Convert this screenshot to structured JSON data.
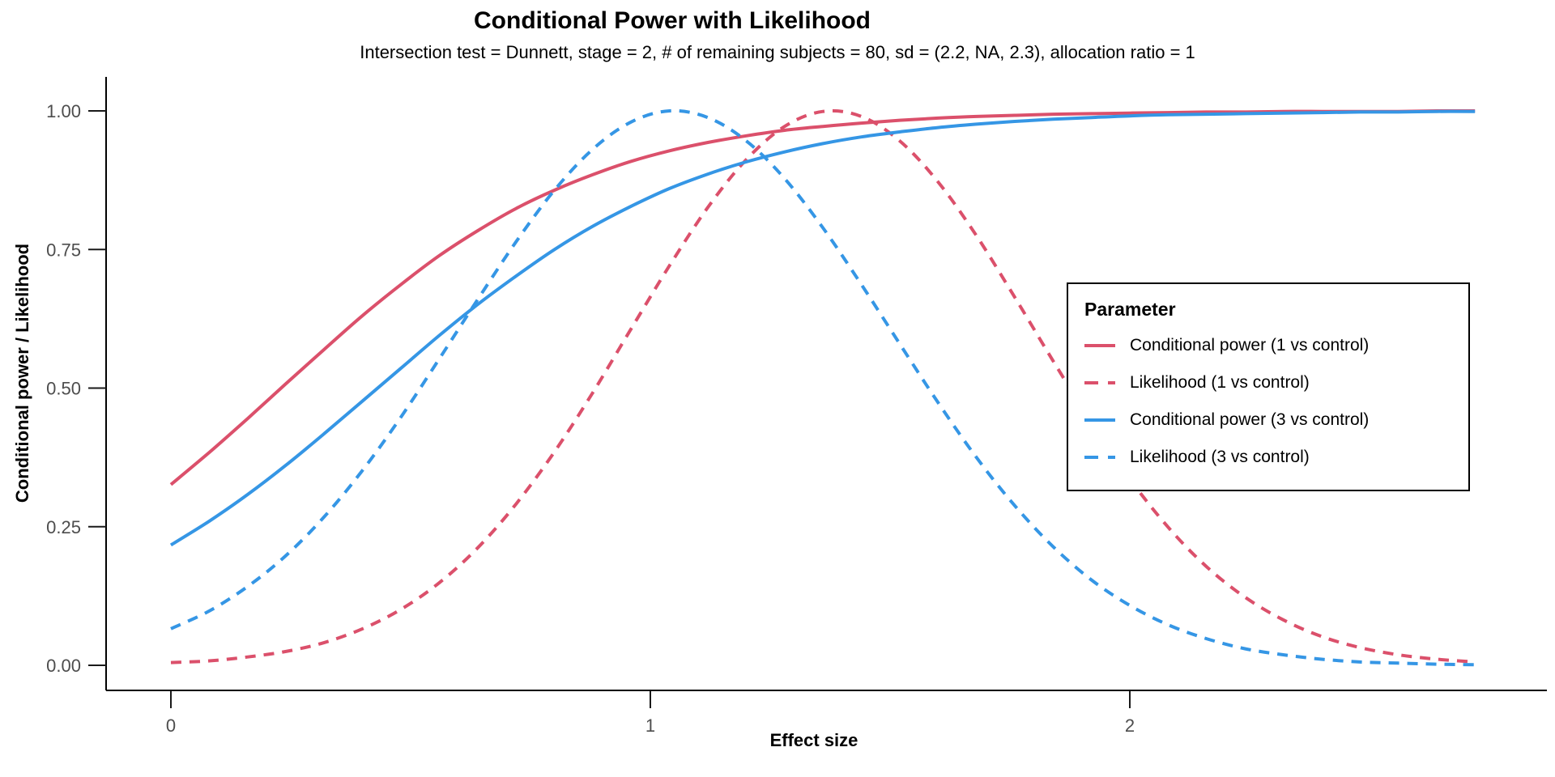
{
  "chart_data": {
    "type": "line",
    "title": "Conditional Power with Likelihood",
    "subtitle": "Intersection test = Dunnett, stage = 2, # of remaining subjects = 80, sd = (2.2, NA, 2.3), allocation ratio = 1",
    "xlabel": "Effect size",
    "ylabel": "Conditional power / Likelihood",
    "xlim": [
      -0.14,
      2.87
    ],
    "ylim": [
      -0.05,
      1.05
    ],
    "grid": false,
    "legend_title": "Parameter",
    "legend_position": "inside-right",
    "x_ticks": {
      "values": [
        0,
        1,
        2
      ],
      "labels": [
        "0",
        "1",
        "2"
      ]
    },
    "y_ticks": {
      "values": [
        0,
        0.25,
        0.5,
        0.75,
        1
      ],
      "labels": [
        "0.00",
        "0.25",
        "0.50",
        "0.75",
        "1.00"
      ]
    },
    "style": {
      "axis_line_color": "#000000",
      "tick_color": "#1a1a1a",
      "tick_label_color": "#4d4d4d",
      "background": "#ffffff"
    },
    "x": [
      0,
      0.08,
      0.16,
      0.24,
      0.32,
      0.4,
      0.48,
      0.56,
      0.64,
      0.72,
      0.8,
      0.88,
      0.96,
      1.04,
      1.12,
      1.2,
      1.28,
      1.36,
      1.44,
      1.52,
      1.6,
      1.68,
      1.76,
      1.84,
      1.92,
      2.0,
      2.08,
      2.16,
      2.24,
      2.32,
      2.4,
      2.48,
      2.56,
      2.64,
      2.72
    ],
    "series": [
      {
        "name": "Conditional power (1 vs control)",
        "color": "#DB506B",
        "line_style": "solid",
        "values": [
          0.326,
          0.384,
          0.445,
          0.508,
          0.57,
          0.631,
          0.687,
          0.739,
          0.784,
          0.824,
          0.857,
          0.885,
          0.909,
          0.928,
          0.943,
          0.955,
          0.965,
          0.972,
          0.978,
          0.983,
          0.987,
          0.99,
          0.992,
          0.994,
          0.995,
          0.996,
          0.997,
          0.998,
          0.998,
          0.999,
          0.999,
          0.999,
          0.999,
          1.0,
          1.0
        ]
      },
      {
        "name": "Likelihood (1 vs control)",
        "color": "#DB506B",
        "line_style": "dashed",
        "values": [
          0.005,
          0.008,
          0.015,
          0.025,
          0.041,
          0.066,
          0.101,
          0.149,
          0.212,
          0.291,
          0.385,
          0.492,
          0.607,
          0.721,
          0.826,
          0.912,
          0.972,
          0.999,
          0.99,
          0.946,
          0.872,
          0.775,
          0.664,
          0.549,
          0.438,
          0.336,
          0.249,
          0.178,
          0.123,
          0.082,
          0.052,
          0.032,
          0.019,
          0.011,
          0.006
        ]
      },
      {
        "name": "Conditional power (3 vs control)",
        "color": "#3596E5",
        "line_style": "solid",
        "values": [
          0.217,
          0.26,
          0.308,
          0.361,
          0.418,
          0.477,
          0.536,
          0.595,
          0.651,
          0.702,
          0.75,
          0.792,
          0.828,
          0.86,
          0.886,
          0.908,
          0.926,
          0.941,
          0.953,
          0.962,
          0.97,
          0.976,
          0.981,
          0.985,
          0.988,
          0.991,
          0.993,
          0.994,
          0.995,
          0.996,
          0.997,
          0.998,
          0.998,
          0.999,
          0.999
        ]
      },
      {
        "name": "Likelihood (3 vs control)",
        "color": "#3596E5",
        "line_style": "dashed",
        "values": [
          0.066,
          0.098,
          0.142,
          0.198,
          0.268,
          0.352,
          0.448,
          0.553,
          0.66,
          0.764,
          0.857,
          0.931,
          0.98,
          1.0,
          0.988,
          0.946,
          0.878,
          0.789,
          0.687,
          0.58,
          0.474,
          0.375,
          0.288,
          0.214,
          0.154,
          0.108,
          0.073,
          0.048,
          0.03,
          0.019,
          0.011,
          0.006,
          0.004,
          0.002,
          0.001
        ]
      }
    ]
  }
}
